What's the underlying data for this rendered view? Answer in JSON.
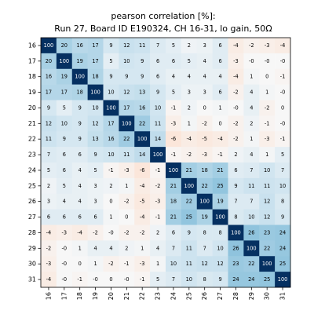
{
  "chart_data": {
    "type": "heatmap",
    "title": "pearson correlation [%]:",
    "subtitle": "Run 27, Board ID E190324, CH 16-31, lo gain, 50Ω",
    "xlabel": "",
    "ylabel": "",
    "x_labels": [
      "16",
      "17",
      "18",
      "19",
      "20",
      "21",
      "22",
      "23",
      "24",
      "25",
      "26",
      "27",
      "28",
      "29",
      "30",
      "31"
    ],
    "y_labels": [
      "16",
      "17",
      "18",
      "19",
      "20",
      "21",
      "22",
      "23",
      "24",
      "25",
      "26",
      "27",
      "28",
      "29",
      "30",
      "31"
    ],
    "vrange": [
      -100,
      100
    ],
    "colormap": "RdBu (red = negative, blue = positive)",
    "values": [
      [
        "100",
        "20",
        "16",
        "17",
        "9",
        "12",
        "11",
        "7",
        "5",
        "2",
        "3",
        "6",
        "-4",
        "-2",
        "-3",
        "-4"
      ],
      [
        "20",
        "100",
        "19",
        "17",
        "5",
        "10",
        "9",
        "6",
        "6",
        "5",
        "4",
        "6",
        "-3",
        "-0",
        "-0",
        "-0"
      ],
      [
        "16",
        "19",
        "100",
        "18",
        "9",
        "9",
        "9",
        "6",
        "4",
        "4",
        "4",
        "4",
        "-4",
        "1",
        "0",
        "-1"
      ],
      [
        "17",
        "17",
        "18",
        "100",
        "10",
        "12",
        "13",
        "9",
        "5",
        "3",
        "3",
        "6",
        "-2",
        "4",
        "1",
        "-0"
      ],
      [
        "9",
        "5",
        "9",
        "10",
        "100",
        "17",
        "16",
        "10",
        "-1",
        "2",
        "0",
        "1",
        "-0",
        "4",
        "-2",
        "0"
      ],
      [
        "12",
        "10",
        "9",
        "12",
        "17",
        "100",
        "22",
        "11",
        "-3",
        "1",
        "-2",
        "0",
        "-2",
        "2",
        "-1",
        "-0"
      ],
      [
        "11",
        "9",
        "9",
        "13",
        "16",
        "22",
        "100",
        "14",
        "-6",
        "-4",
        "-5",
        "-4",
        "-2",
        "1",
        "-3",
        "-1"
      ],
      [
        "7",
        "6",
        "6",
        "9",
        "10",
        "11",
        "14",
        "100",
        "-1",
        "-2",
        "-3",
        "-1",
        "2",
        "4",
        "1",
        "5"
      ],
      [
        "5",
        "6",
        "4",
        "5",
        "-1",
        "-3",
        "-6",
        "-1",
        "100",
        "21",
        "18",
        "21",
        "6",
        "7",
        "10",
        "7"
      ],
      [
        "2",
        "5",
        "4",
        "3",
        "2",
        "1",
        "-4",
        "-2",
        "21",
        "100",
        "22",
        "25",
        "9",
        "11",
        "11",
        "10"
      ],
      [
        "3",
        "4",
        "4",
        "3",
        "0",
        "-2",
        "-5",
        "-3",
        "18",
        "22",
        "100",
        "19",
        "7",
        "7",
        "12",
        "8"
      ],
      [
        "6",
        "6",
        "6",
        "6",
        "1",
        "0",
        "-4",
        "-1",
        "21",
        "25",
        "19",
        "100",
        "8",
        "10",
        "12",
        "9"
      ],
      [
        "-4",
        "-3",
        "-4",
        "-2",
        "-0",
        "-2",
        "-2",
        "2",
        "6",
        "9",
        "8",
        "8",
        "100",
        "26",
        "23",
        "24"
      ],
      [
        "-2",
        "-0",
        "1",
        "4",
        "4",
        "2",
        "1",
        "4",
        "7",
        "11",
        "7",
        "10",
        "26",
        "100",
        "22",
        "24"
      ],
      [
        "-3",
        "-0",
        "0",
        "1",
        "-2",
        "-1",
        "-3",
        "1",
        "10",
        "11",
        "12",
        "12",
        "23",
        "22",
        "100",
        "25"
      ],
      [
        "-4",
        "-0",
        "-1",
        "-0",
        "0",
        "-0",
        "-1",
        "5",
        "7",
        "10",
        "8",
        "9",
        "24",
        "24",
        "25",
        "100"
      ]
    ]
  }
}
